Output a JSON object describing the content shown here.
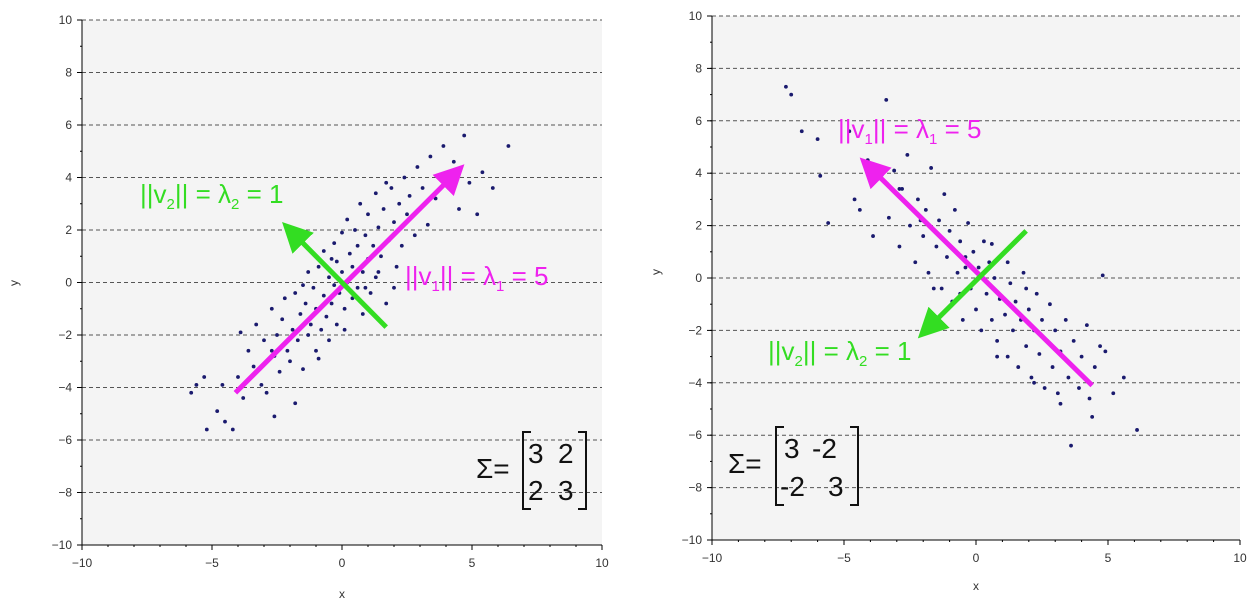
{
  "colors": {
    "point": "#1a1a6e",
    "v1": "#ee22ee",
    "v2": "#33dd22",
    "grid": "#555555",
    "plot_bg": "#f4f4f4",
    "axis": "#000000"
  },
  "chart_data": [
    {
      "type": "scatter",
      "xlabel": "x",
      "ylabel": "y",
      "xlim": [
        -10,
        10
      ],
      "ylim": [
        -10,
        10
      ],
      "x_ticks": [
        "−10",
        "−5",
        "0",
        "5",
        "10"
      ],
      "y_ticks": [
        "−10",
        "−8",
        "−6",
        "−4",
        "−2",
        "0",
        "2",
        "4",
        "6",
        "8",
        "10"
      ],
      "grid": "horizontal dashed",
      "points": [
        [
          -5.8,
          -4.2
        ],
        [
          -5.6,
          -3.9
        ],
        [
          -5.3,
          -3.6
        ],
        [
          -5.2,
          -5.6
        ],
        [
          -4.8,
          -4.9
        ],
        [
          -4.6,
          -3.9
        ],
        [
          -4.5,
          -5.3
        ],
        [
          -4.2,
          -5.6
        ],
        [
          -4.0,
          -3.6
        ],
        [
          -3.8,
          -4.4
        ],
        [
          -3.6,
          -2.6
        ],
        [
          -3.4,
          -3.2
        ],
        [
          -3.3,
          -1.6
        ],
        [
          -3.1,
          -3.9
        ],
        [
          -3.0,
          -2.2
        ],
        [
          -2.9,
          -4.2
        ],
        [
          -2.7,
          -1.0
        ],
        [
          -2.6,
          -5.1
        ],
        [
          -2.6,
          -2.8
        ],
        [
          -2.5,
          -2.0
        ],
        [
          -2.4,
          -3.4
        ],
        [
          -2.3,
          -1.4
        ],
        [
          -2.2,
          -0.6
        ],
        [
          -2.1,
          -2.6
        ],
        [
          -2.0,
          -3.0
        ],
        [
          -1.9,
          -1.8
        ],
        [
          -1.8,
          -0.4
        ],
        [
          -1.8,
          -4.6
        ],
        [
          -1.7,
          -2.2
        ],
        [
          -1.6,
          -1.2
        ],
        [
          -1.5,
          -3.3
        ],
        [
          -1.4,
          -0.8
        ],
        [
          -1.3,
          0.4
        ],
        [
          -1.3,
          -2.0
        ],
        [
          -1.2,
          -1.6
        ],
        [
          -1.1,
          -0.2
        ],
        [
          -1.0,
          -2.6
        ],
        [
          -1.0,
          -1.0
        ],
        [
          -0.9,
          0.6
        ],
        [
          -0.8,
          -1.8
        ],
        [
          -0.7,
          -0.5
        ],
        [
          -0.7,
          1.2
        ],
        [
          -0.6,
          -1.3
        ],
        [
          -0.5,
          0.2
        ],
        [
          -0.5,
          -2.2
        ],
        [
          -0.4,
          -0.8
        ],
        [
          -0.3,
          1.5
        ],
        [
          -0.3,
          -0.1
        ],
        [
          -0.2,
          0.8
        ],
        [
          -0.2,
          -1.6
        ],
        [
          -0.1,
          -0.4
        ],
        [
          0.0,
          0.4
        ],
        [
          0.0,
          1.9
        ],
        [
          0.1,
          -1.0
        ],
        [
          0.2,
          0.0
        ],
        [
          0.2,
          2.4
        ],
        [
          0.3,
          1.1
        ],
        [
          0.4,
          -0.6
        ],
        [
          0.4,
          0.6
        ],
        [
          0.5,
          2.0
        ],
        [
          0.6,
          -0.2
        ],
        [
          0.6,
          1.4
        ],
        [
          0.7,
          3.0
        ],
        [
          0.8,
          0.4
        ],
        [
          0.8,
          -1.2
        ],
        [
          0.9,
          1.8
        ],
        [
          1.0,
          0.9
        ],
        [
          1.0,
          2.6
        ],
        [
          1.1,
          -0.4
        ],
        [
          1.2,
          1.4
        ],
        [
          1.3,
          3.4
        ],
        [
          1.3,
          0.2
        ],
        [
          1.4,
          2.1
        ],
        [
          1.5,
          1.0
        ],
        [
          1.6,
          2.8
        ],
        [
          1.7,
          -0.8
        ],
        [
          1.8,
          1.6
        ],
        [
          1.9,
          3.6
        ],
        [
          2.0,
          2.3
        ],
        [
          2.1,
          0.6
        ],
        [
          2.2,
          3.0
        ],
        [
          2.3,
          1.4
        ],
        [
          2.4,
          4.0
        ],
        [
          2.5,
          2.6
        ],
        [
          2.6,
          3.3
        ],
        [
          2.8,
          1.8
        ],
        [
          2.9,
          4.4
        ],
        [
          3.0,
          2.8
        ],
        [
          3.1,
          3.6
        ],
        [
          3.3,
          2.2
        ],
        [
          3.4,
          4.8
        ],
        [
          3.6,
          3.2
        ],
        [
          3.7,
          4.0
        ],
        [
          3.9,
          5.2
        ],
        [
          4.1,
          3.6
        ],
        [
          4.3,
          4.6
        ],
        [
          4.5,
          2.8
        ],
        [
          4.7,
          5.6
        ],
        [
          4.9,
          3.8
        ],
        [
          5.2,
          2.6
        ],
        [
          5.4,
          4.2
        ],
        [
          5.8,
          3.6
        ],
        [
          6.4,
          5.2
        ],
        [
          -0.4,
          0.9
        ],
        [
          0.1,
          -1.8
        ],
        [
          0.9,
          -0.2
        ],
        [
          1.4,
          0.4
        ],
        [
          -1.5,
          -0.1
        ],
        [
          -2.7,
          -2.6
        ],
        [
          2.0,
          -0.2
        ],
        [
          -0.9,
          -2.9
        ],
        [
          1.7,
          3.8
        ],
        [
          -3.9,
          -1.9
        ]
      ],
      "vectors": [
        {
          "from": [
            -4.1,
            -4.2
          ],
          "to": [
            4.3,
            4.1
          ],
          "color": "v1"
        },
        {
          "from": [
            1.7,
            -1.7
          ],
          "to": [
            -1.9,
            1.9
          ],
          "color": "v2"
        }
      ]
    },
    {
      "type": "scatter",
      "xlabel": "x",
      "ylabel": "y",
      "xlim": [
        -10,
        10
      ],
      "ylim": [
        -10,
        10
      ],
      "x_ticks": [
        "−10",
        "−5",
        "0",
        "5",
        "10"
      ],
      "y_ticks": [
        "−10",
        "−8",
        "−6",
        "−4",
        "−2",
        "0",
        "2",
        "4",
        "6",
        "8",
        "10"
      ],
      "grid": "horizontal dashed",
      "points": [
        [
          -7.2,
          7.3
        ],
        [
          -7.0,
          7.0
        ],
        [
          -6.6,
          5.6
        ],
        [
          -6.0,
          5.3
        ],
        [
          -5.9,
          3.9
        ],
        [
          -5.6,
          2.1
        ],
        [
          -4.8,
          5.6
        ],
        [
          -4.6,
          3.0
        ],
        [
          -4.4,
          2.6
        ],
        [
          -4.1,
          4.5
        ],
        [
          -3.9,
          1.6
        ],
        [
          -3.6,
          3.8
        ],
        [
          -3.4,
          6.8
        ],
        [
          -3.3,
          2.3
        ],
        [
          -3.1,
          4.1
        ],
        [
          -2.9,
          1.2
        ],
        [
          -2.8,
          3.4
        ],
        [
          -2.6,
          4.7
        ],
        [
          -2.5,
          2.0
        ],
        [
          -2.3,
          0.6
        ],
        [
          -2.2,
          3.0
        ],
        [
          -2.0,
          1.6
        ],
        [
          -1.9,
          2.6
        ],
        [
          -1.8,
          0.2
        ],
        [
          -1.7,
          4.2
        ],
        [
          -1.5,
          1.2
        ],
        [
          -1.4,
          2.2
        ],
        [
          -1.3,
          -0.4
        ],
        [
          -1.2,
          3.2
        ],
        [
          -1.1,
          0.8
        ],
        [
          -1.0,
          1.8
        ],
        [
          -0.9,
          -0.9
        ],
        [
          -0.8,
          2.6
        ],
        [
          -0.7,
          0.2
        ],
        [
          -0.6,
          1.4
        ],
        [
          -0.5,
          -1.6
        ],
        [
          -0.4,
          0.8
        ],
        [
          -0.3,
          2.1
        ],
        [
          -0.2,
          -0.4
        ],
        [
          -0.1,
          1.0
        ],
        [
          0.0,
          -1.2
        ],
        [
          0.1,
          0.4
        ],
        [
          0.2,
          -2.0
        ],
        [
          0.3,
          1.4
        ],
        [
          0.4,
          -0.6
        ],
        [
          0.5,
          0.6
        ],
        [
          0.6,
          -1.6
        ],
        [
          0.7,
          0.0
        ],
        [
          0.8,
          -2.4
        ],
        [
          0.9,
          -0.8
        ],
        [
          1.0,
          0.9
        ],
        [
          1.1,
          -1.4
        ],
        [
          1.2,
          -3.0
        ],
        [
          1.3,
          -0.2
        ],
        [
          1.4,
          -2.0
        ],
        [
          1.5,
          -0.9
        ],
        [
          1.6,
          -3.4
        ],
        [
          1.7,
          -1.6
        ],
        [
          1.8,
          0.2
        ],
        [
          1.9,
          -2.6
        ],
        [
          2.0,
          -1.2
        ],
        [
          2.1,
          -3.8
        ],
        [
          2.2,
          -2.0
        ],
        [
          2.3,
          -0.6
        ],
        [
          2.4,
          -2.9
        ],
        [
          2.5,
          -1.6
        ],
        [
          2.6,
          -4.2
        ],
        [
          2.7,
          -2.4
        ],
        [
          2.8,
          -1.0
        ],
        [
          2.9,
          -3.4
        ],
        [
          3.0,
          -2.0
        ],
        [
          3.1,
          -4.4
        ],
        [
          3.2,
          -2.8
        ],
        [
          3.4,
          -1.6
        ],
        [
          3.5,
          -3.8
        ],
        [
          3.6,
          -6.4
        ],
        [
          3.7,
          -2.4
        ],
        [
          3.9,
          -4.2
        ],
        [
          4.0,
          -3.0
        ],
        [
          4.2,
          -1.8
        ],
        [
          4.3,
          -4.6
        ],
        [
          4.4,
          -5.3
        ],
        [
          4.5,
          -3.4
        ],
        [
          4.7,
          -2.6
        ],
        [
          4.8,
          0.1
        ],
        [
          4.9,
          -2.8
        ],
        [
          5.2,
          -4.4
        ],
        [
          5.6,
          -3.8
        ],
        [
          6.1,
          -5.8
        ],
        [
          -2.9,
          3.4
        ],
        [
          -1.6,
          -0.4
        ],
        [
          0.6,
          1.3
        ],
        [
          1.2,
          0.6
        ],
        [
          -0.6,
          -0.6
        ],
        [
          2.2,
          -4.0
        ],
        [
          0.8,
          -3.0
        ],
        [
          -2.1,
          2.2
        ],
        [
          1.9,
          -0.4
        ],
        [
          3.2,
          -4.8
        ],
        [
          -0.4,
          0.4
        ]
      ],
      "vectors": [
        {
          "from": [
            4.4,
            -4.1
          ],
          "to": [
            -4.0,
            4.2
          ],
          "color": "v1"
        },
        {
          "from": [
            1.9,
            1.8
          ],
          "to": [
            -1.8,
            -1.9
          ],
          "color": "v2"
        }
      ]
    }
  ],
  "annotations": {
    "left": {
      "v2_label": {
        "pre": "||v",
        "sub1": "2",
        "mid": "|| = λ",
        "sub2": "2",
        "post": " = 1"
      },
      "v1_label": {
        "pre": "||v",
        "sub1": "1",
        "mid": "|| = λ",
        "sub2": "1",
        "post": " = 5"
      },
      "sigma": "Σ=",
      "matrix": [
        [
          "3",
          "2"
        ],
        [
          "2",
          "3"
        ]
      ]
    },
    "right": {
      "v1_label": {
        "pre": "||v",
        "sub1": "1",
        "mid": "|| = λ",
        "sub2": "1",
        "post": " = 5"
      },
      "v2_label": {
        "pre": "||v",
        "sub1": "2",
        "mid": "|| = λ",
        "sub2": "2",
        "post": " = 1"
      },
      "sigma": "Σ=",
      "matrix": [
        [
          "3",
          "-2"
        ],
        [
          "-2",
          "3"
        ]
      ]
    }
  }
}
